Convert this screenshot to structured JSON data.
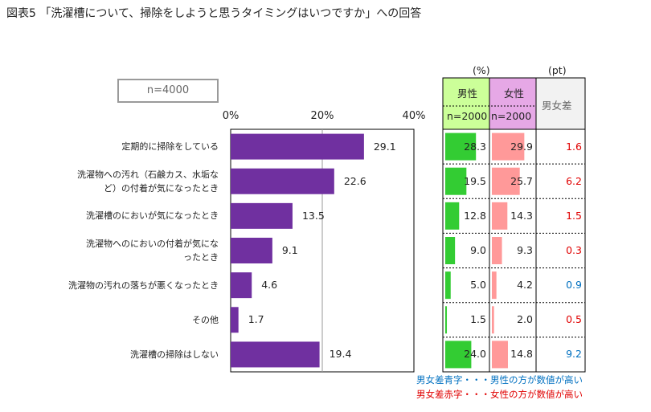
{
  "title": "図表5 「洗濯槽について、掃除をしようと思うタイミングはいつですか」への回答",
  "sample_size": "n=4000",
  "units": {
    "percent": "(%)",
    "points": "(pt)"
  },
  "table_headers": {
    "male": "男性",
    "female": "女性",
    "male_n": "n=2000",
    "female_n": "n=2000",
    "diff": "男女差"
  },
  "notes": {
    "blue": "男女差青字・・・男性の方が数値が高い",
    "red": "男女差赤字・・・女性の方が数値が高い"
  },
  "colors": {
    "bar": "#7030a0",
    "male_bar": "#33cc33",
    "female_bar": "#ff9999",
    "male_header": "#ccff99",
    "female_header": "#e6a8e6",
    "diff_header": "#f2f2f2",
    "blue": "#0070c0",
    "red": "#e00000"
  },
  "chart_data": {
    "type": "bar",
    "orientation": "horizontal",
    "title": "図表5 「洗濯槽について、掃除をしようと思うタイミングはいつですか」への回答",
    "xlim": [
      0,
      40
    ],
    "ticks": [
      "0%",
      "20%",
      "40%"
    ],
    "categories": [
      [
        "定期的に掃除をしている"
      ],
      [
        "洗濯物への汚れ（石鹸カス、水垢な",
        "ど）の付着が気になったとき"
      ],
      [
        "洗濯槽のにおいが気になったとき"
      ],
      [
        "洗濯物へのにおいの付着が気にな",
        "ったとき"
      ],
      [
        "洗濯物の汚れの落ちが悪くなったとき"
      ],
      [
        "その他"
      ],
      [
        "洗濯槽の掃除はしない"
      ]
    ],
    "values": [
      29.1,
      22.6,
      13.5,
      9.1,
      4.6,
      1.7,
      19.4
    ],
    "value_labels": [
      "29.1",
      "22.6",
      "13.5",
      "9.1",
      "4.6",
      "1.7",
      "19.4"
    ],
    "male": [
      28.3,
      19.5,
      12.8,
      9.0,
      5.0,
      1.5,
      24.0
    ],
    "male_labels": [
      "28.3",
      "19.5",
      "12.8",
      "9.0",
      "5.0",
      "1.5",
      "24.0"
    ],
    "female": [
      29.9,
      25.7,
      14.3,
      9.3,
      4.2,
      2.0,
      14.8
    ],
    "female_labels": [
      "29.9",
      "25.7",
      "14.3",
      "9.3",
      "4.2",
      "2.0",
      "14.8"
    ],
    "diff": [
      "1.6",
      "6.2",
      "1.5",
      "0.3",
      "0.9",
      "0.5",
      "9.2"
    ],
    "diff_sign": [
      "red",
      "red",
      "red",
      "red",
      "blue",
      "red",
      "blue"
    ]
  }
}
